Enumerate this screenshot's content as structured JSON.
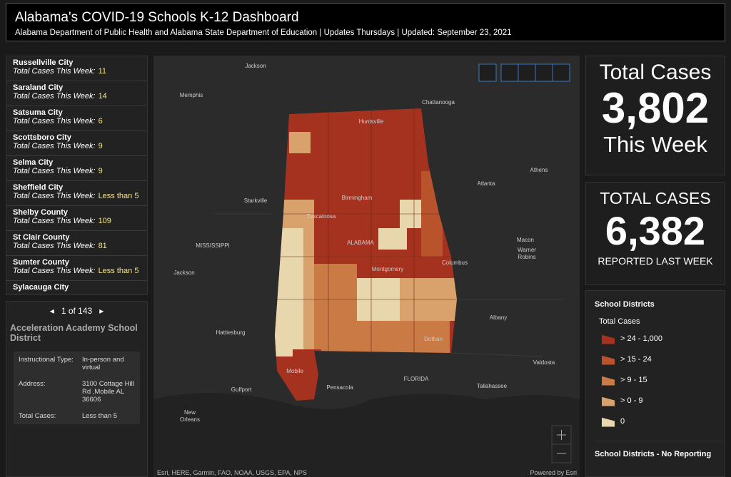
{
  "header": {
    "title": "Alabama's COVID-19 Schools K-12 Dashboard",
    "subtitle": "Alabama Department of Public Health and Alabama State Department of Education | Updates Thursdays | Updated: September 23, 2021"
  },
  "district_list": {
    "items": [
      {
        "name": "Russellville City",
        "label": "Total Cases This Week:",
        "value": 11
      },
      {
        "name": "Saraland City",
        "label": "Total Cases This Week:",
        "value": 14
      },
      {
        "name": "Satsuma City",
        "label": "Total Cases This Week:",
        "value": 6
      },
      {
        "name": "Scottsboro City",
        "label": "Total Cases This Week:",
        "value": 9
      },
      {
        "name": "Selma City",
        "label": "Total Cases This Week:",
        "value": 9
      },
      {
        "name": "Sheffield City",
        "label": "Total Cases This Week:",
        "value": "Less than 5"
      },
      {
        "name": "Shelby County",
        "label": "Total Cases This Week:",
        "value": 109
      },
      {
        "name": "St Clair County",
        "label": "Total Cases This Week:",
        "value": 81
      },
      {
        "name": "Sumter County",
        "label": "Total Cases This Week:",
        "value": "Less than 5"
      },
      {
        "name": "Sylacauga City"
      }
    ]
  },
  "detail": {
    "pager": "1 of 143",
    "title": "Acceleration Academy School District",
    "fields": [
      [
        "Instructional Type:",
        "In-person and virtual"
      ],
      [
        "Address:",
        "3100 Cottage Hill Rd ,Mobile AL 36606"
      ],
      [
        "Total Cases:",
        "Less than 5"
      ]
    ]
  },
  "map": {
    "labels": [
      "Jackson",
      "Memphis",
      "Chattanooga",
      "Huntsville",
      "Athens",
      "Atlanta",
      "Starkville",
      "Birmingham",
      "Tuscaloosa",
      "ALABAMA",
      "MISSISSIPPI",
      "Macon",
      "Warner",
      "Robins",
      "Columbus",
      "Montgomery",
      "Jackson",
      "Albany",
      "Hattiesburg",
      "Dothan",
      "Valdosta",
      "FLORIDA",
      "Gulfport",
      "Mobile",
      "Pensacola",
      "Tallahassee",
      "New",
      "Orleans"
    ],
    "attribution": "Esri, HERE, Garmin, FAO, NOAA, USGS, EPA, NPS",
    "powered": "Powered by Esri"
  },
  "kpi_this_week": {
    "top": "Total Cases",
    "value": "3,802",
    "bottom": "This Week"
  },
  "kpi_last_week": {
    "top": "TOTAL CASES",
    "value": "6,382",
    "bottom": "REPORTED LAST WEEK"
  },
  "legend": {
    "title": "School Districts",
    "subtitle": "Total Cases",
    "items": [
      {
        "label": "> 24 - 1,000",
        "color": "#a5311f"
      },
      {
        "label": "> 15 - 24",
        "color": "#b9532c"
      },
      {
        "label": "> 9 - 15",
        "color": "#c97a45"
      },
      {
        "label": "> 0 - 9",
        "color": "#d9a26c"
      },
      {
        "label": "0",
        "color": "#e8d6ad"
      }
    ],
    "no_reporting_title": "School Districts - No Reporting"
  }
}
